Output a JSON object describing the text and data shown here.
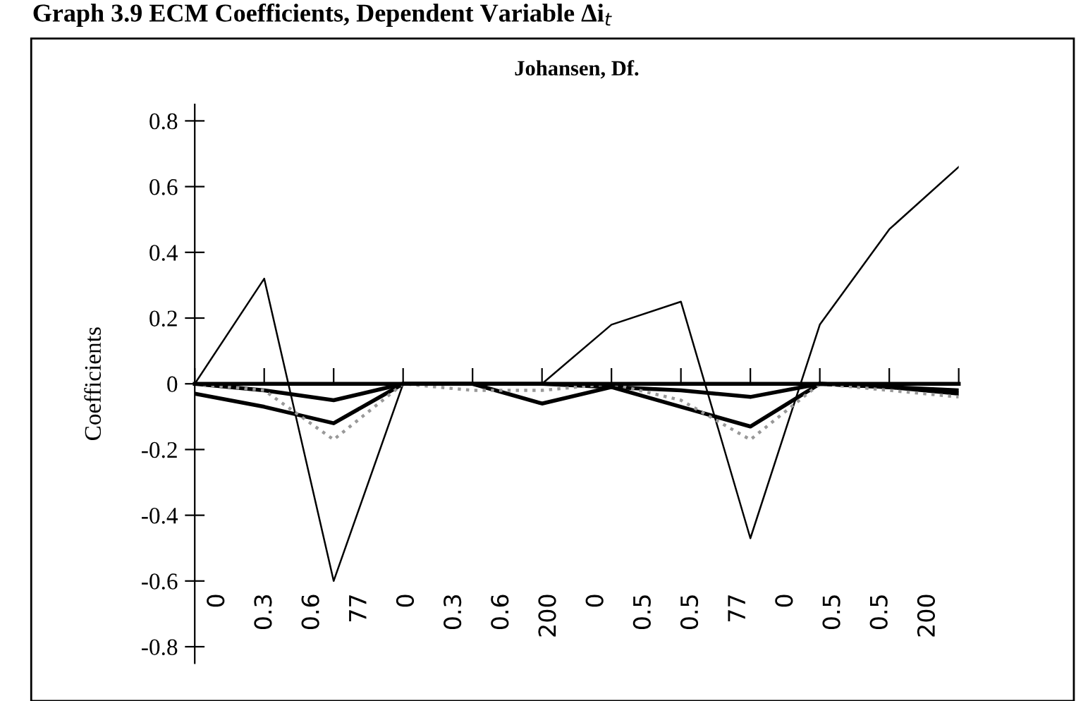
{
  "chart_data": {
    "type": "line",
    "title": "Graph 3.9 ECM Coefficients, Dependent Variable Δi$_{t}$",
    "subtitle": "Johansen, Df.",
    "ylabel": "Coefficients",
    "categories": [
      null,
      null,
      null,
      null,
      null,
      null,
      null,
      null,
      null,
      null,
      null,
      null
    ],
    "series": [
      {
        "color": "#000000",
        "values": [
          0,
          0.32,
          -0.6,
          0,
          0,
          0,
          0.18,
          0.25,
          -0.47,
          0.18,
          0.47,
          0.66
        ]
      },
      {
        "color": "#000000",
        "values": [
          -0.03,
          -0.07,
          -0.12,
          0,
          0,
          -0.06,
          -0.01,
          -0.07,
          -0.13,
          0,
          -0.01,
          -0.03
        ]
      },
      {
        "color": "#000000",
        "values": [
          0,
          -0.02,
          -0.05,
          0,
          0,
          0,
          -0.01,
          -0.02,
          -0.04,
          0,
          -0.01,
          -0.02
        ]
      },
      {
        "color": "#999999",
        "line_style": "dotted",
        "values": [
          0,
          -0.02,
          -0.17,
          0,
          -0.02,
          -0.02,
          0,
          -0.05,
          -0.17,
          0,
          -0.02,
          -0.04
        ]
      }
    ],
    "ylim": [
      -0.85,
      0.85
    ],
    "yticks": [
      -0.8,
      -0.6,
      -0.4,
      -0.2,
      0,
      0.2,
      0.4,
      0.6,
      0.8
    ],
    "annotations": [
      "0",
      "0.3",
      "0.6",
      "77",
      "0",
      "0.3",
      "0.6",
      "200",
      "0",
      "0.5",
      "0.5",
      "77",
      "0",
      "0.5",
      "0.5",
      "200"
    ],
    "legend": false,
    "marker": "none"
  }
}
